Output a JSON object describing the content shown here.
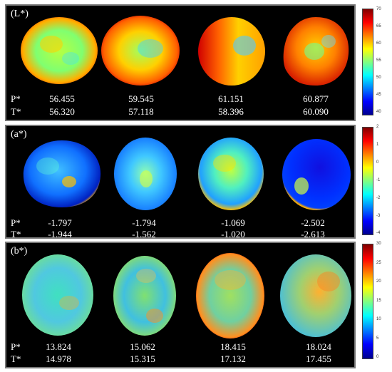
{
  "panels": [
    {
      "label": "(L*)",
      "p_label": "P*",
      "t_label": "T*",
      "p_values": [
        "56.455",
        "59.545",
        "61.151",
        "60.877"
      ],
      "t_values": [
        "56.320",
        "57.118",
        "58.396",
        "60.090"
      ],
      "colorbar_ticks": [
        "70",
        "65",
        "60",
        "55",
        "50",
        "45",
        "40"
      ]
    },
    {
      "label": "(a*)",
      "p_label": "P*",
      "t_label": "T*",
      "p_values": [
        "-1.797",
        "-1.794",
        "-1.069",
        "-2.502"
      ],
      "t_values": [
        "-1.944",
        "-1.562",
        "-1.020",
        "-2.613"
      ],
      "colorbar_ticks": [
        "2",
        "1",
        "0",
        "-1",
        "-2",
        "-3",
        "-4"
      ]
    },
    {
      "label": "(b*)",
      "p_label": "P*",
      "t_label": "T*",
      "p_values": [
        "13.824",
        "15.062",
        "18.415",
        "18.024"
      ],
      "t_values": [
        "14.978",
        "15.315",
        "17.132",
        "17.455"
      ],
      "colorbar_ticks": [
        "30",
        "25",
        "20",
        "15",
        "10",
        "5",
        "0"
      ]
    }
  ],
  "colors": {
    "jet_dark_blue": "#00008f",
    "jet_blue": "#0050ff",
    "jet_cyan": "#00e0ff",
    "jet_green": "#60ff90",
    "jet_yellow": "#ffe000",
    "jet_orange": "#ff7000",
    "jet_red": "#c00000"
  }
}
